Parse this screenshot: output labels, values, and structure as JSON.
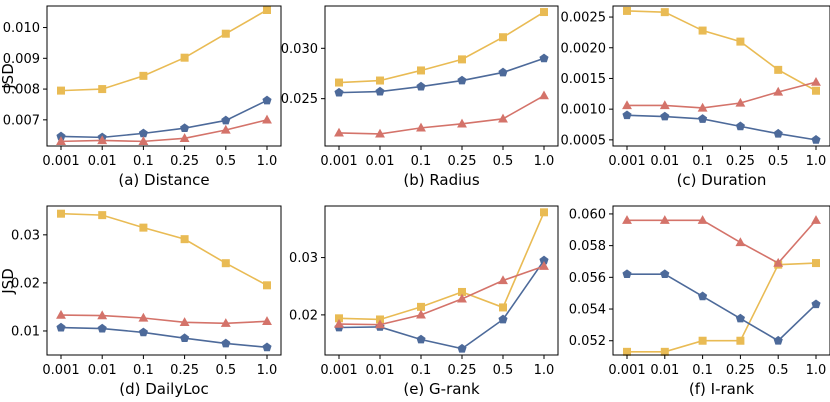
{
  "colors": {
    "series_1": "#e9bb54",
    "series_2": "#4d6a9a",
    "series_3": "#d4736a"
  },
  "ylabel": "JSD",
  "chart_data": [
    {
      "type": "line",
      "title": "(a) Distance",
      "x": [
        "0.001",
        "0.01",
        "0.1",
        "0.25",
        "0.5",
        "1.0"
      ],
      "ylim": [
        0.00615,
        0.0107
      ],
      "yticks": [
        0.007,
        0.008,
        0.009,
        0.01
      ],
      "ytick_labels": [
        "0.007",
        "0.008",
        "0.009",
        "0.010"
      ],
      "series": [
        {
          "values": [
            0.00795,
            0.008,
            0.00843,
            0.00902,
            0.0098,
            0.01057
          ]
        },
        {
          "values": [
            0.00646,
            0.00643,
            0.00656,
            0.00673,
            0.00698,
            0.00763
          ]
        },
        {
          "values": [
            0.0063,
            0.00633,
            0.0063,
            0.0064,
            0.00667,
            0.007
          ]
        }
      ]
    },
    {
      "type": "line",
      "title": "(b) Radius",
      "x": [
        "0.001",
        "0.01",
        "0.1",
        "0.25",
        "0.5",
        "1.0"
      ],
      "ylim": [
        0.0203,
        0.0342
      ],
      "yticks": [
        0.025,
        0.03
      ],
      "ytick_labels": [
        "0.025",
        "0.030"
      ],
      "series": [
        {
          "values": [
            0.0266,
            0.0268,
            0.0278,
            0.0289,
            0.0311,
            0.0336
          ]
        },
        {
          "values": [
            0.0256,
            0.0257,
            0.0262,
            0.0268,
            0.0276,
            0.029
          ]
        },
        {
          "values": [
            0.0216,
            0.0215,
            0.0221,
            0.0225,
            0.023,
            0.0253
          ]
        }
      ]
    },
    {
      "type": "line",
      "title": "(c) Duration",
      "x": [
        "0.001",
        "0.01",
        "0.1",
        "0.25",
        "0.5",
        "1.0"
      ],
      "ylim": [
        0.0004,
        0.00268
      ],
      "yticks": [
        0.0005,
        0.001,
        0.0015,
        0.002,
        0.0025
      ],
      "ytick_labels": [
        "0.0005",
        "0.0010",
        "0.0015",
        "0.0020",
        "0.0025"
      ],
      "series": [
        {
          "values": [
            0.0026,
            0.00258,
            0.00228,
            0.0021,
            0.00164,
            0.0013
          ]
        },
        {
          "values": [
            0.0009,
            0.00088,
            0.00084,
            0.00072,
            0.0006,
            0.0005
          ]
        },
        {
          "values": [
            0.00106,
            0.00106,
            0.00102,
            0.0011,
            0.00128,
            0.00144
          ]
        }
      ]
    },
    {
      "type": "line",
      "title": "(d) DailyLoc",
      "x": [
        "0.001",
        "0.01",
        "0.1",
        "0.25",
        "0.5",
        "1.0"
      ],
      "ylim": [
        0.005,
        0.036
      ],
      "yticks": [
        0.01,
        0.02,
        0.03
      ],
      "ytick_labels": [
        "0.01",
        "0.02",
        "0.03"
      ],
      "series": [
        {
          "values": [
            0.0344,
            0.0341,
            0.0315,
            0.0291,
            0.0241,
            0.0195
          ]
        },
        {
          "values": [
            0.0107,
            0.0105,
            0.0097,
            0.0085,
            0.0074,
            0.0066
          ]
        },
        {
          "values": [
            0.0133,
            0.0132,
            0.0127,
            0.0118,
            0.0116,
            0.012
          ]
        }
      ]
    },
    {
      "type": "line",
      "title": "(e) G-rank",
      "x": [
        "0.001",
        "0.01",
        "0.1",
        "0.25",
        "0.5",
        "1.0"
      ],
      "ylim": [
        0.013,
        0.039
      ],
      "yticks": [
        0.02,
        0.03
      ],
      "ytick_labels": [
        "0.02",
        "0.03"
      ],
      "series": [
        {
          "values": [
            0.0194,
            0.0192,
            0.0214,
            0.024,
            0.0213,
            0.0379
          ]
        },
        {
          "values": [
            0.0178,
            0.0179,
            0.0157,
            0.0141,
            0.0192,
            0.0295
          ]
        },
        {
          "values": [
            0.0184,
            0.0183,
            0.02,
            0.0228,
            0.026,
            0.0285
          ]
        }
      ]
    },
    {
      "type": "line",
      "title": "(f) I-rank",
      "x": [
        "0.001",
        "0.01",
        "0.1",
        "0.25",
        "0.5",
        "1.0"
      ],
      "ylim": [
        0.0511,
        0.0605
      ],
      "yticks": [
        0.052,
        0.054,
        0.056,
        0.058,
        0.06
      ],
      "ytick_labels": [
        "0.052",
        "0.054",
        "0.056",
        "0.058",
        "0.060"
      ],
      "series": [
        {
          "values": [
            0.0513,
            0.0513,
            0.052,
            0.052,
            0.0568,
            0.0569
          ]
        },
        {
          "values": [
            0.0562,
            0.0562,
            0.0548,
            0.0534,
            0.052,
            0.0543
          ]
        },
        {
          "values": [
            0.0596,
            0.0596,
            0.0596,
            0.0582,
            0.0569,
            0.0596
          ]
        }
      ]
    }
  ]
}
